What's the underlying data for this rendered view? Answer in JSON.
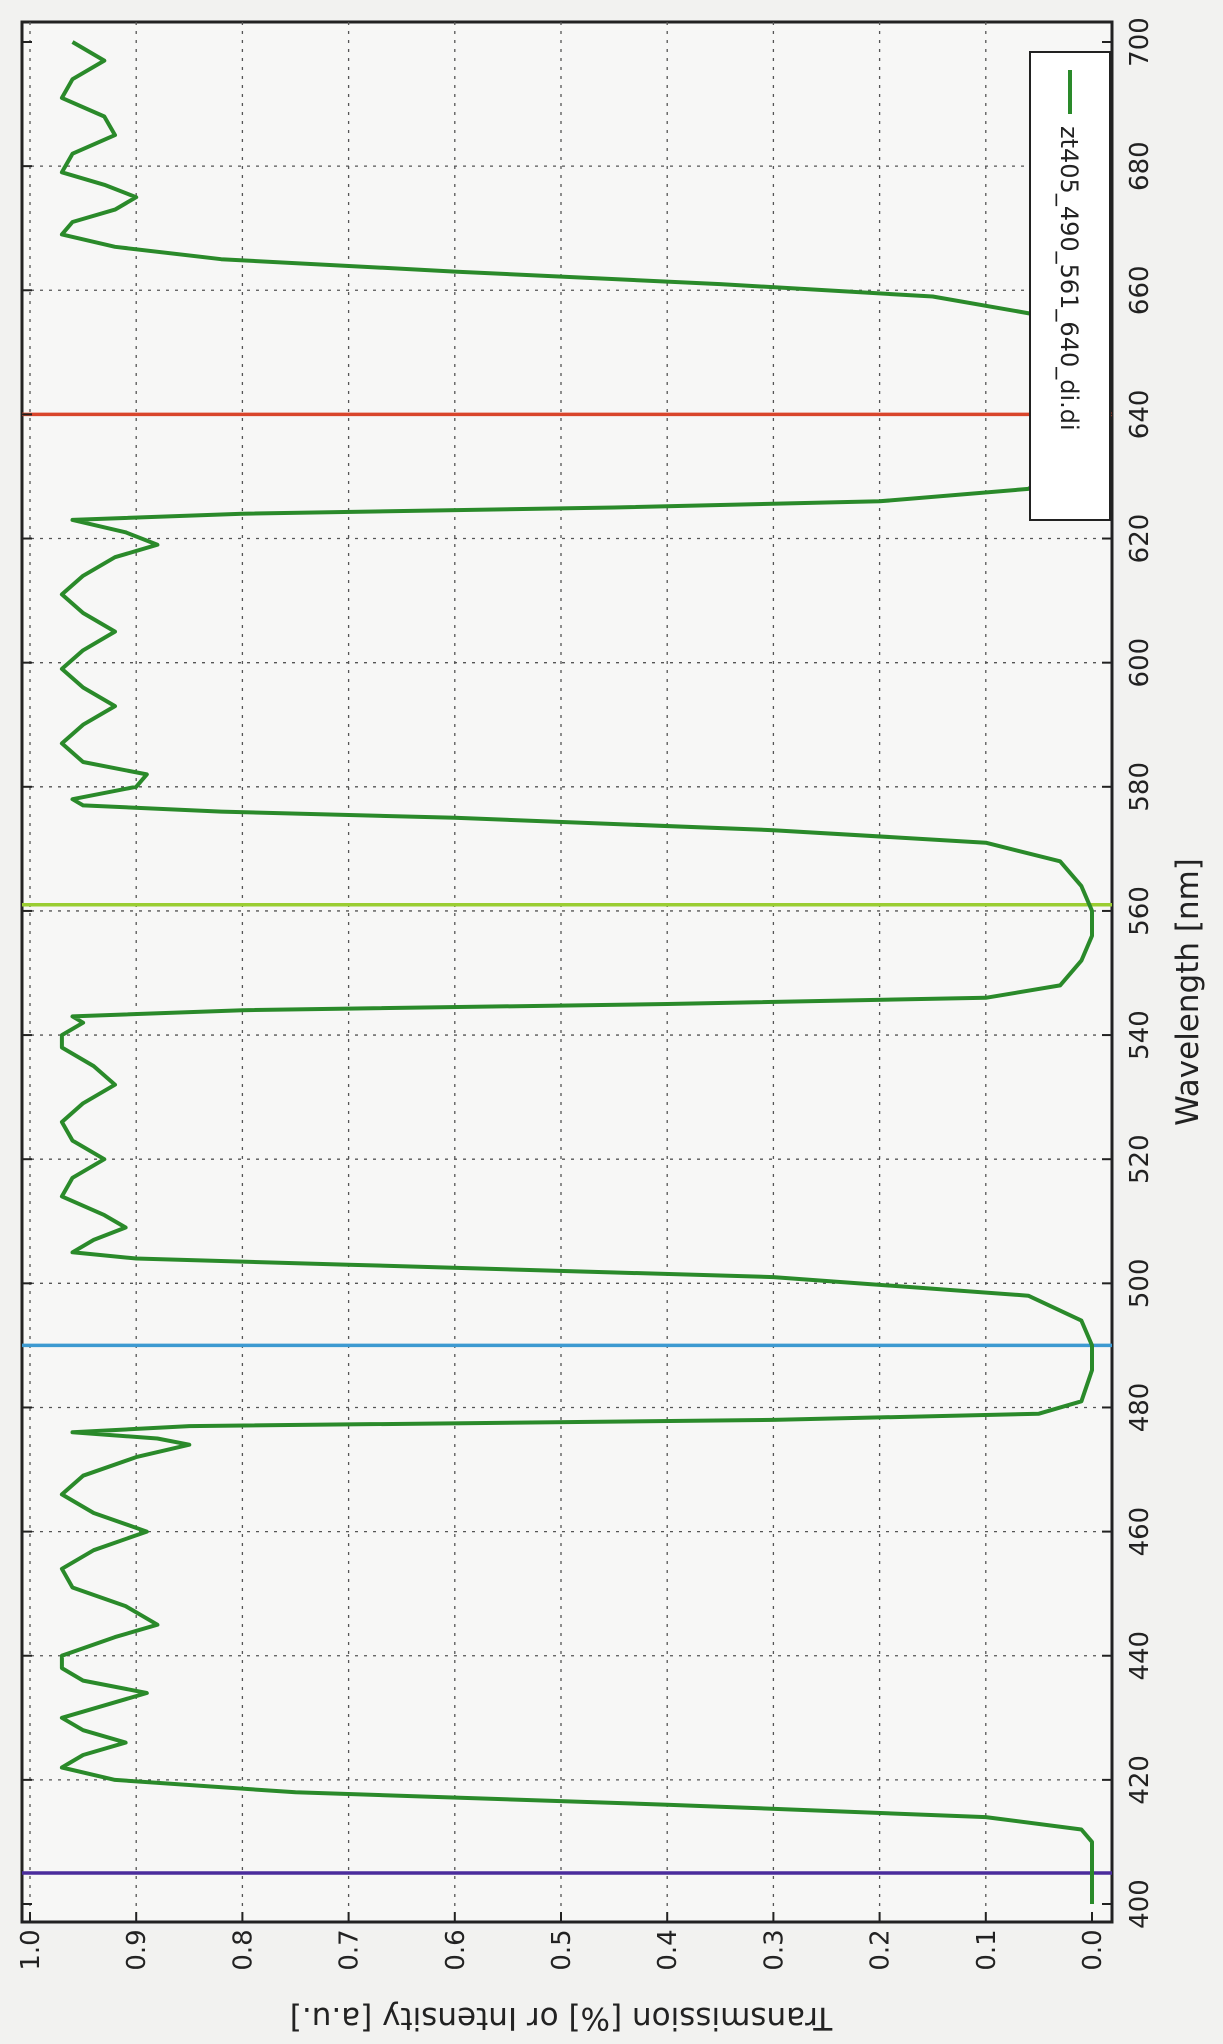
{
  "chart_data": {
    "type": "line",
    "xlabel": "Wavelength [nm]",
    "ylabel": "Transmission [%] or Intensity [a.u.]",
    "xlim": [
      400,
      700
    ],
    "ylim": [
      0.0,
      1.05
    ],
    "x_ticks": [
      "400",
      "420",
      "440",
      "460",
      "480",
      "500",
      "520",
      "540",
      "560",
      "580",
      "600",
      "620",
      "640",
      "660",
      "680",
      "700"
    ],
    "y_ticks": [
      "0.0",
      "0.1",
      "0.2",
      "0.3",
      "0.4",
      "0.5",
      "0.6",
      "0.7",
      "0.8",
      "0.9",
      "1.0"
    ],
    "grid": true,
    "legend_position": "top-right",
    "series": [
      {
        "name": "zt405_490_561_640_di.di",
        "color": "#2a8a2a",
        "points": [
          [
            400,
            0.0
          ],
          [
            405,
            0.0
          ],
          [
            410,
            0.0
          ],
          [
            412,
            0.01
          ],
          [
            414,
            0.1
          ],
          [
            416,
            0.4
          ],
          [
            418,
            0.75
          ],
          [
            420,
            0.92
          ],
          [
            422,
            0.97
          ],
          [
            424,
            0.95
          ],
          [
            426,
            0.91
          ],
          [
            428,
            0.95
          ],
          [
            430,
            0.97
          ],
          [
            432,
            0.93
          ],
          [
            434,
            0.89
          ],
          [
            436,
            0.95
          ],
          [
            438,
            0.97
          ],
          [
            440,
            0.97
          ],
          [
            443,
            0.92
          ],
          [
            445,
            0.88
          ],
          [
            448,
            0.91
          ],
          [
            451,
            0.96
          ],
          [
            454,
            0.97
          ],
          [
            457,
            0.94
          ],
          [
            460,
            0.89
          ],
          [
            463,
            0.94
          ],
          [
            466,
            0.97
          ],
          [
            469,
            0.95
          ],
          [
            472,
            0.9
          ],
          [
            474,
            0.85
          ],
          [
            475,
            0.88
          ],
          [
            476,
            0.96
          ],
          [
            477,
            0.85
          ],
          [
            478,
            0.3
          ],
          [
            479,
            0.05
          ],
          [
            481,
            0.01
          ],
          [
            486,
            0.0
          ],
          [
            490,
            0.0
          ],
          [
            494,
            0.01
          ],
          [
            498,
            0.06
          ],
          [
            501,
            0.3
          ],
          [
            503,
            0.7
          ],
          [
            504,
            0.9
          ],
          [
            505,
            0.96
          ],
          [
            507,
            0.94
          ],
          [
            509,
            0.91
          ],
          [
            511,
            0.93
          ],
          [
            514,
            0.97
          ],
          [
            517,
            0.96
          ],
          [
            520,
            0.93
          ],
          [
            523,
            0.96
          ],
          [
            526,
            0.97
          ],
          [
            529,
            0.95
          ],
          [
            532,
            0.92
          ],
          [
            535,
            0.94
          ],
          [
            538,
            0.97
          ],
          [
            540,
            0.97
          ],
          [
            542,
            0.95
          ],
          [
            543,
            0.96
          ],
          [
            544,
            0.8
          ],
          [
            545,
            0.4
          ],
          [
            546,
            0.1
          ],
          [
            548,
            0.03
          ],
          [
            552,
            0.01
          ],
          [
            556,
            0.0
          ],
          [
            560,
            0.0
          ],
          [
            564,
            0.01
          ],
          [
            568,
            0.03
          ],
          [
            571,
            0.1
          ],
          [
            573,
            0.3
          ],
          [
            575,
            0.6
          ],
          [
            576,
            0.82
          ],
          [
            577,
            0.95
          ],
          [
            578,
            0.96
          ],
          [
            580,
            0.9
          ],
          [
            582,
            0.89
          ],
          [
            584,
            0.95
          ],
          [
            587,
            0.97
          ],
          [
            590,
            0.95
          ],
          [
            593,
            0.92
          ],
          [
            596,
            0.95
          ],
          [
            599,
            0.97
          ],
          [
            602,
            0.95
          ],
          [
            605,
            0.92
          ],
          [
            608,
            0.95
          ],
          [
            611,
            0.97
          ],
          [
            614,
            0.95
          ],
          [
            617,
            0.92
          ],
          [
            619,
            0.88
          ],
          [
            621,
            0.91
          ],
          [
            623,
            0.96
          ],
          [
            624,
            0.8
          ],
          [
            625,
            0.45
          ],
          [
            626,
            0.2
          ],
          [
            628,
            0.06
          ],
          [
            632,
            0.02
          ],
          [
            636,
            0.01
          ],
          [
            640,
            0.0
          ],
          [
            644,
            0.0
          ],
          [
            648,
            0.01
          ],
          [
            652,
            0.02
          ],
          [
            656,
            0.05
          ],
          [
            659,
            0.15
          ],
          [
            661,
            0.35
          ],
          [
            663,
            0.6
          ],
          [
            665,
            0.82
          ],
          [
            667,
            0.92
          ],
          [
            669,
            0.97
          ],
          [
            671,
            0.96
          ],
          [
            673,
            0.92
          ],
          [
            675,
            0.9
          ],
          [
            677,
            0.93
          ],
          [
            679,
            0.97
          ],
          [
            682,
            0.96
          ],
          [
            685,
            0.92
          ],
          [
            688,
            0.93
          ],
          [
            691,
            0.97
          ],
          [
            694,
            0.96
          ],
          [
            697,
            0.93
          ],
          [
            700,
            0.96
          ]
        ]
      }
    ],
    "laser_lines": [
      {
        "wavelength": 405,
        "color": "#4a2c9c"
      },
      {
        "wavelength": 490,
        "color": "#3d9ad1"
      },
      {
        "wavelength": 561,
        "color": "#9acd32"
      },
      {
        "wavelength": 640,
        "color": "#d9452b"
      }
    ]
  }
}
